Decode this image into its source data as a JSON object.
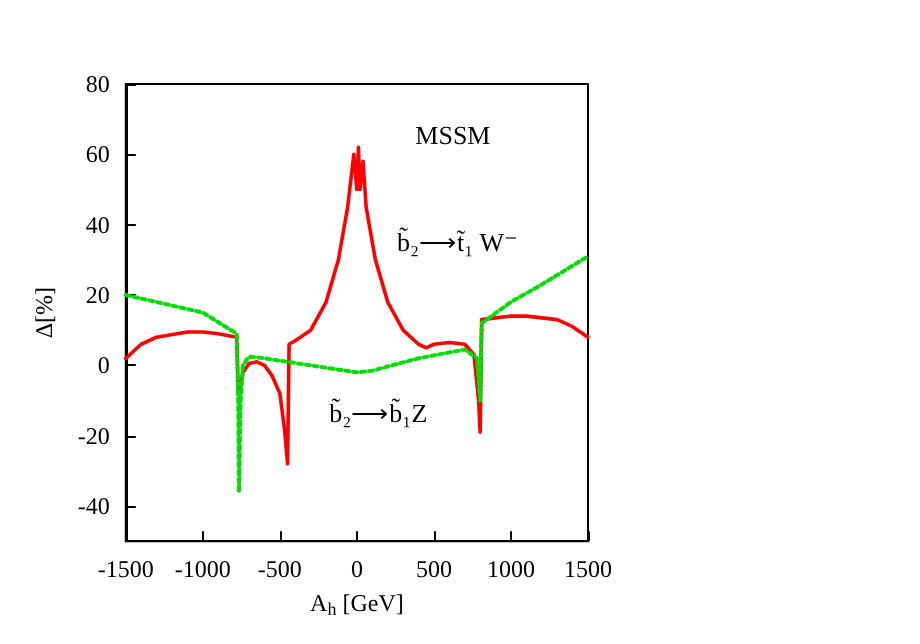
{
  "chart_data": {
    "type": "line",
    "xlabel": "A$_{h}$ [GeV]",
    "ylabel": "Δ[%]",
    "xlim": [
      -1500,
      1500
    ],
    "xticks": [
      -1500,
      -1000,
      -500,
      0,
      500,
      1000,
      1500
    ],
    "ylim": [
      -50,
      80
    ],
    "yticks": [
      -40,
      -20,
      0,
      20,
      40,
      60,
      80
    ],
    "grid": false,
    "marker": "none",
    "annotations": [
      "MSSM",
      "b̃₂⟶t̃₁ W⁻",
      "b̃₂⟶b̃₁Z"
    ],
    "series": [
      {
        "color": "#ff0000",
        "line_style": "solid",
        "x": [
          -1500,
          -1400,
          -1300,
          -1100,
          -1000,
          -900,
          -780,
          -770,
          -760,
          -740,
          -700,
          -650,
          -600,
          -550,
          -500,
          -470,
          -450,
          -440,
          -400,
          -300,
          -200,
          -120,
          -60,
          -20,
          0,
          10,
          20,
          40,
          60,
          120,
          200,
          300,
          400,
          450,
          500,
          600,
          700,
          760,
          790,
          800,
          810,
          900,
          1000,
          1100,
          1200,
          1300,
          1400,
          1500
        ],
        "values": [
          2,
          6,
          8,
          9.5,
          9.5,
          9,
          8,
          -8,
          -8,
          -2,
          0.5,
          1,
          0,
          -3,
          -8,
          -18,
          -28,
          6,
          7,
          10,
          18,
          30,
          45,
          60,
          50,
          62,
          50,
          58,
          45,
          30,
          18,
          10,
          6,
          5,
          6,
          6.5,
          6,
          3,
          -10,
          -19,
          13,
          13.5,
          14,
          14,
          13.5,
          13,
          11,
          8
        ]
      },
      {
        "color": "#00dd00",
        "line_style": "dotted",
        "x": [
          -1500,
          -1000,
          -780,
          -770,
          -765,
          -755,
          -740,
          -700,
          -600,
          -300,
          0,
          100,
          400,
          700,
          780,
          800,
          810,
          1000,
          1200,
          1500
        ],
        "values": [
          20,
          15,
          9,
          -10,
          -36,
          -10,
          0,
          2.5,
          2,
          0,
          -2,
          -1.5,
          2,
          4.5,
          2,
          -10,
          12,
          18,
          23,
          31
        ]
      }
    ]
  }
}
